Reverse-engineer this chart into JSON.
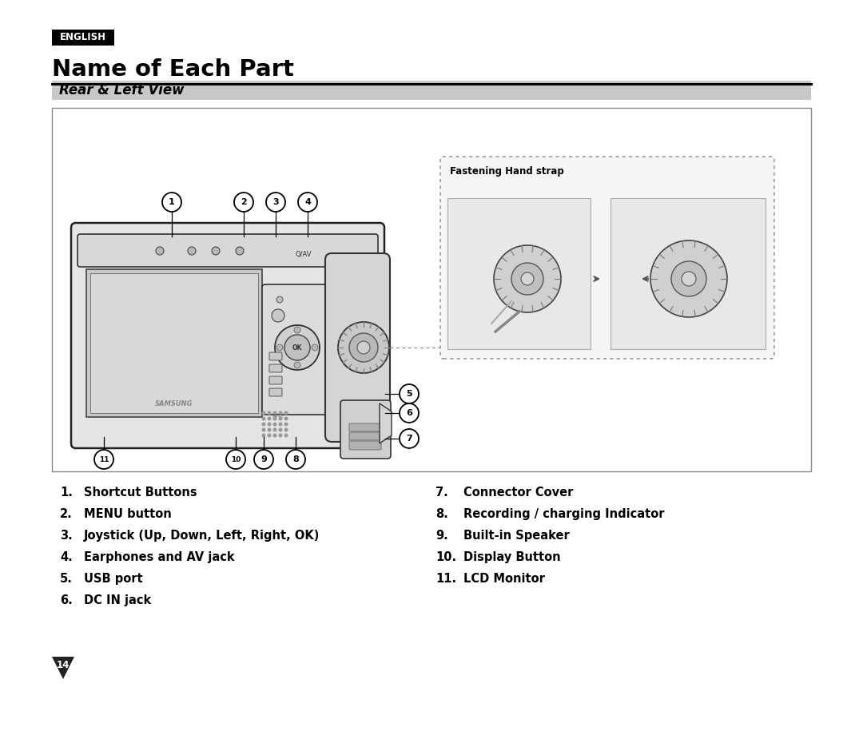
{
  "bg_color": "#ffffff",
  "english_label": "ENGLISH",
  "english_bg": "#000000",
  "english_fg": "#ffffff",
  "title": "Name of Each Part",
  "subtitle": "Rear & Left View",
  "subtitle_bg": "#c8c8c8",
  "items_left": [
    [
      "1.",
      "Shortcut Buttons"
    ],
    [
      "2.",
      "MENU button"
    ],
    [
      "3.",
      "Joystick (Up, Down, Left, Right, OK)"
    ],
    [
      "4.",
      "Earphones and AV jack"
    ],
    [
      "5.",
      "USB port"
    ],
    [
      "6.",
      "DC IN jack"
    ]
  ],
  "items_right": [
    [
      "7.",
      "Connector Cover"
    ],
    [
      "8.",
      "Recording / charging Indicator"
    ],
    [
      "9.",
      "Built-in Speaker"
    ],
    [
      "10.",
      "Display Button"
    ],
    [
      "11.",
      "LCD Monitor"
    ]
  ],
  "fastening_label": "Fastening Hand strap",
  "page_number": "14"
}
